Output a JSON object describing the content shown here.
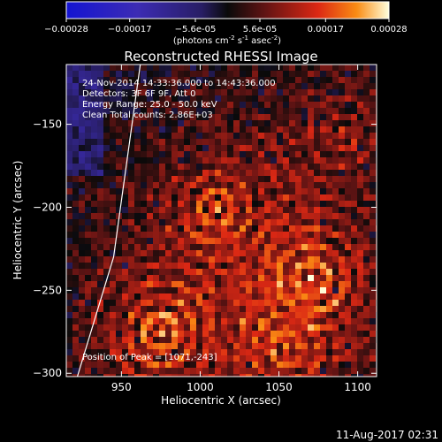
{
  "footer": {
    "timestamp": "11-Aug-2017 02:31"
  },
  "chart_data": {
    "type": "heatmap",
    "title": "Reconstructed RHESSI Image",
    "xlabel": "Heliocentric X (arcsec)",
    "ylabel": "Heliocentric Y (arcsec)",
    "xlim": [
      915,
      1112
    ],
    "ylim": [
      -302,
      -114
    ],
    "x_ticks": [
      950,
      1000,
      1050,
      1100
    ],
    "x_tick_labels": [
      "950",
      "1000",
      "1050",
      "1100"
    ],
    "y_ticks": [
      -150,
      -200,
      -250,
      -300
    ],
    "y_tick_labels": [
      "−150",
      "−200",
      "−250",
      "−300"
    ],
    "annotations": [
      "24-Nov-2014 14:33:36.000 to 14:43:36.000",
      "Detectors: 3F 6F 9F, Att 0",
      "Energy Range: 25.0 - 50.0 keV",
      "Clean     Total counts: 2.86E+03"
    ],
    "peak_label": "Position of Peak = [1071,-243]",
    "peak_position": [
      1071,
      -243
    ],
    "limb_points": [
      [
        922,
        -302
      ],
      [
        945,
        -230
      ],
      [
        962,
        -114
      ]
    ],
    "colorbar": {
      "range": [
        -0.00028,
        0.00028
      ],
      "tick_labels": [
        "-0.00028",
        "-0.00017",
        "-5.6e-05",
        "5.6e-05",
        "0.00017",
        "0.00028"
      ],
      "label_main": "(photons cm",
      "label_exp1": "-2",
      "label_s": " s",
      "label_exp2": "-1",
      "label_asec": " asec",
      "label_exp3": "-2",
      "label_end": ")"
    },
    "sources": [
      {
        "x": 975,
        "y": -275,
        "intensity": 0.00028
      },
      {
        "x": 1010,
        "y": -200,
        "intensity": 0.00022
      },
      {
        "x": 1071,
        "y": -243,
        "intensity": 0.00028
      },
      {
        "x": 1055,
        "y": -285,
        "intensity": 0.0002
      },
      {
        "x": 1090,
        "y": -155,
        "intensity": 0.00014
      }
    ],
    "colors": {
      "background": "#000000",
      "foreground": "#ffffff"
    }
  }
}
